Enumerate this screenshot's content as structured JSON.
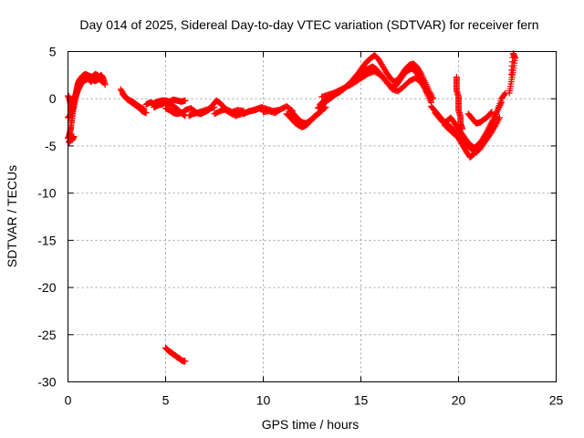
{
  "chart_data": {
    "type": "scatter",
    "title": "Day 014 of 2025, Sidereal Day-to-day VTEC variation (SDTVAR) for receiver fern",
    "xlabel": "GPS time / hours",
    "ylabel": "SDTVAR / TECUs",
    "xlim": [
      0,
      25
    ],
    "ylim": [
      -30,
      5
    ],
    "xticks": [
      0,
      5,
      10,
      15,
      20,
      25
    ],
    "yticks": [
      5,
      0,
      -5,
      -10,
      -15,
      -20,
      -25,
      -30
    ],
    "grid": true,
    "marker": "plus",
    "series": [
      {
        "name": "SDTVAR",
        "color": "#ff0000",
        "segments": [
          {
            "x": [
              0.0,
              0.05,
              0.1,
              0.15,
              0.2,
              0.25,
              0.3,
              0.35,
              0.4,
              0.45,
              0.5,
              0.55,
              0.6,
              0.7,
              0.8,
              0.9,
              1.0,
              1.1,
              1.2,
              1.3,
              1.4,
              1.5,
              1.6,
              1.7,
              1.8,
              1.9
            ],
            "y": [
              -4.2,
              -4.0,
              -3.6,
              -3.0,
              -2.2,
              -1.4,
              -0.6,
              0.0,
              0.5,
              1.0,
              1.5,
              1.8,
              2.0,
              2.3,
              2.5,
              2.6,
              2.5,
              2.4,
              2.3,
              2.4,
              2.6,
              2.5,
              2.3,
              2.5,
              2.2,
              1.5
            ]
          },
          {
            "x": [
              0.0,
              0.1,
              0.2,
              0.3,
              0.4,
              0.5,
              0.6,
              0.7,
              0.8,
              0.9,
              1.0,
              1.2,
              1.4,
              1.6,
              1.8
            ],
            "y": [
              -2.0,
              -1.8,
              -1.2,
              -0.4,
              0.3,
              0.9,
              1.3,
              1.7,
              1.9,
              2.0,
              2.1,
              2.0,
              1.9,
              2.1,
              1.7
            ]
          },
          {
            "x": [
              0.0,
              0.05,
              0.1,
              0.15,
              0.2,
              0.3,
              0.4,
              0.5,
              0.6,
              0.7,
              0.8,
              0.9,
              1.0,
              1.1,
              1.2
            ],
            "y": [
              0.3,
              0.2,
              -0.2,
              -0.8,
              -1.4,
              -0.8,
              0.2,
              0.9,
              1.4,
              1.8,
              2.1,
              2.3,
              2.2,
              2.0,
              1.8
            ]
          },
          {
            "x": [
              0.05,
              0.1,
              0.15,
              0.2,
              0.25,
              0.3
            ],
            "y": [
              -4.6,
              -4.5,
              -4.3,
              -4.4,
              -4.2,
              -4.0
            ]
          },
          {
            "x": [
              2.7,
              2.9,
              3.1,
              3.3,
              3.5,
              3.7,
              3.9
            ],
            "y": [
              1.0,
              0.3,
              -0.1,
              -0.3,
              -0.6,
              -0.9,
              -1.1
            ]
          },
          {
            "x": [
              2.8,
              3.0,
              3.2,
              3.4,
              3.6,
              3.8,
              4.0
            ],
            "y": [
              0.5,
              0.0,
              -0.3,
              -0.6,
              -0.9,
              -1.3,
              -1.5
            ]
          },
          {
            "x": [
              4.0,
              4.2,
              4.4,
              4.6,
              4.8,
              5.0,
              5.2,
              5.4,
              5.6,
              5.8,
              6.0
            ],
            "y": [
              -0.6,
              -0.4,
              -0.5,
              -0.3,
              -0.2,
              -0.2,
              -0.3,
              -0.1,
              -0.2,
              -0.3,
              -0.2
            ]
          },
          {
            "x": [
              4.4,
              4.6,
              4.8,
              5.0,
              5.2,
              5.4,
              5.6,
              5.8,
              6.0
            ],
            "y": [
              -0.9,
              -0.7,
              -0.6,
              -0.4,
              -0.5,
              -0.8,
              -1.1,
              -1.5,
              -1.8
            ]
          },
          {
            "x": [
              5.0,
              5.2,
              5.4,
              5.6,
              5.8,
              6.0
            ],
            "y": [
              -1.0,
              -1.2,
              -1.5,
              -1.6,
              -1.5,
              -1.3
            ]
          },
          {
            "x": [
              6.0,
              6.3,
              6.6,
              6.9,
              7.2,
              7.5
            ],
            "y": [
              -1.2,
              -1.0,
              -1.5,
              -1.3,
              -1.1,
              -0.9
            ]
          },
          {
            "x": [
              6.2,
              6.4,
              6.6,
              6.8,
              7.0,
              7.2,
              7.4,
              7.6,
              7.8,
              8.0
            ],
            "y": [
              -1.8,
              -1.6,
              -1.5,
              -1.6,
              -1.4,
              -1.2,
              -0.7,
              -0.2,
              -0.5,
              -0.9
            ]
          },
          {
            "x": [
              7.5,
              7.8,
              8.1,
              8.4,
              8.7,
              9.0
            ],
            "y": [
              -1.6,
              -1.3,
              -1.1,
              -1.4,
              -1.2,
              -1.3
            ]
          },
          {
            "x": [
              8.0,
              8.3,
              8.6,
              8.9,
              9.2,
              9.5,
              9.8,
              10.0
            ],
            "y": [
              -1.1,
              -1.5,
              -1.8,
              -1.6,
              -1.4,
              -1.2,
              -1.0,
              -1.2
            ]
          },
          {
            "x": [
              9.0,
              9.3,
              9.6,
              9.9,
              10.2,
              10.5,
              10.8
            ],
            "y": [
              -1.6,
              -1.3,
              -1.2,
              -0.9,
              -1.1,
              -1.3,
              -1.2
            ]
          },
          {
            "x": [
              10.0,
              10.3,
              10.6,
              10.9,
              11.2,
              11.5
            ],
            "y": [
              -1.4,
              -1.3,
              -1.5,
              -1.1,
              -0.8,
              -1.3
            ]
          },
          {
            "x": [
              11.2,
              11.4,
              11.6,
              11.8,
              12.0,
              12.2,
              12.4,
              12.6,
              12.8,
              13.0
            ],
            "y": [
              -1.6,
              -2.0,
              -2.5,
              -2.8,
              -3.0,
              -2.8,
              -2.4,
              -1.9,
              -1.6,
              -1.3
            ]
          },
          {
            "x": [
              11.4,
              11.6,
              11.8,
              12.0,
              12.2,
              12.4,
              12.6,
              12.8,
              13.0,
              13.2
            ],
            "y": [
              -1.3,
              -1.7,
              -2.2,
              -2.5,
              -2.6,
              -2.3,
              -2.0,
              -1.6,
              -1.2,
              -0.9
            ]
          },
          {
            "x": [
              12.8,
              13.0,
              13.2,
              13.4,
              13.6,
              13.8,
              14.0,
              14.2,
              14.4,
              14.6,
              14.8,
              15.0,
              15.2,
              15.4,
              15.6,
              15.8,
              16.0,
              16.2,
              16.4,
              16.6,
              16.8,
              17.0,
              17.2,
              17.4,
              17.6,
              17.8,
              18.0,
              18.2,
              18.4,
              18.6
            ],
            "y": [
              -1.0,
              -0.7,
              -0.3,
              0.0,
              0.3,
              0.6,
              0.9,
              1.2,
              1.5,
              1.8,
              2.2,
              2.6,
              3.0,
              3.2,
              3.4,
              3.1,
              2.6,
              2.1,
              1.6,
              1.2,
              1.4,
              2.0,
              2.6,
              3.0,
              3.2,
              2.9,
              2.3,
              1.4,
              0.5,
              -0.4
            ]
          },
          {
            "x": [
              12.9,
              13.1,
              13.3,
              13.5,
              13.7,
              13.9,
              14.1,
              14.3,
              14.5,
              14.7,
              14.9,
              15.1,
              15.3,
              15.5,
              15.7,
              15.9,
              16.1,
              16.3,
              16.5,
              16.7,
              16.9,
              17.1,
              17.3,
              17.5,
              17.7,
              17.9,
              18.1,
              18.3,
              18.5,
              18.7
            ],
            "y": [
              -0.6,
              -0.3,
              0.0,
              0.3,
              0.5,
              0.7,
              1.0,
              1.4,
              1.8,
              2.3,
              2.8,
              3.4,
              3.9,
              4.3,
              4.6,
              4.2,
              3.5,
              2.8,
              2.2,
              1.8,
              2.0,
              2.6,
              3.2,
              3.6,
              3.7,
              3.3,
              2.6,
              1.7,
              0.8,
              0.0
            ]
          },
          {
            "x": [
              13.0,
              13.3,
              13.6,
              13.9,
              14.2,
              14.5,
              14.8,
              15.1,
              15.4,
              15.7,
              16.0,
              16.3,
              16.6,
              16.9,
              17.2,
              17.5,
              17.8,
              18.1,
              18.4
            ],
            "y": [
              0.2,
              0.4,
              0.6,
              0.9,
              1.2,
              1.5,
              1.9,
              2.3,
              2.7,
              2.9,
              2.5,
              1.8,
              1.0,
              0.8,
              1.3,
              1.9,
              2.2,
              1.7,
              0.6
            ]
          },
          {
            "x": [
              18.6,
              18.8,
              19.0,
              19.2,
              19.4,
              19.6,
              19.8,
              20.0,
              20.2,
              20.4,
              20.6,
              20.8,
              21.0,
              21.2,
              21.4,
              21.6,
              21.8,
              22.0,
              22.2,
              22.4
            ],
            "y": [
              -0.8,
              -1.3,
              -1.8,
              -2.3,
              -2.7,
              -3.0,
              -3.5,
              -4.2,
              -4.9,
              -5.6,
              -6.2,
              -5.8,
              -5.2,
              -4.6,
              -3.9,
              -3.2,
              -2.3,
              -1.2,
              0.0,
              0.6
            ]
          },
          {
            "x": [
              18.8,
              19.0,
              19.2,
              19.4,
              19.6,
              19.8,
              20.0,
              20.2,
              20.4,
              20.6,
              20.8,
              21.0,
              21.2,
              21.4,
              21.6,
              21.8,
              22.0,
              22.2
            ],
            "y": [
              -1.5,
              -2.0,
              -2.5,
              -2.4,
              -2.0,
              -2.6,
              -3.2,
              -3.8,
              -4.4,
              -4.9,
              -5.2,
              -4.9,
              -4.4,
              -3.7,
              -2.9,
              -2.1,
              -1.2,
              -0.4
            ]
          },
          {
            "x": [
              19.3,
              19.5,
              19.7,
              19.9,
              20.1,
              20.3,
              20.5,
              20.7,
              20.9,
              21.1,
              21.3,
              21.5,
              21.7,
              21.9,
              22.1
            ],
            "y": [
              -2.8,
              -3.2,
              -3.6,
              -3.9,
              -4.3,
              -4.7,
              -5.0,
              -5.4,
              -5.7,
              -5.3,
              -4.7,
              -4.1,
              -3.5,
              -2.8,
              -2.0
            ]
          },
          {
            "x": [
              19.9,
              19.9,
              19.9,
              20.0,
              20.0,
              20.0,
              20.1,
              20.1,
              20.2
            ],
            "y": [
              2.3,
              1.6,
              0.9,
              0.2,
              -0.5,
              -1.2,
              -1.9,
              -2.6,
              -3.2
            ]
          },
          {
            "x": [
              20.5,
              20.7,
              20.9,
              21.1,
              21.3,
              21.5,
              21.7
            ],
            "y": [
              -1.6,
              -2.1,
              -2.6,
              -2.5,
              -2.2,
              -1.9,
              -1.4
            ]
          },
          {
            "x": [
              22.6,
              22.7,
              22.8,
              22.9,
              22.8,
              22.7
            ],
            "y": [
              0.6,
              1.8,
              3.0,
              4.3,
              4.8,
              2.6
            ]
          },
          {
            "x": [
              5.0,
              5.1,
              5.2,
              5.3,
              5.4,
              5.5,
              5.6,
              5.7,
              5.8,
              5.9,
              6.0
            ],
            "y": [
              -26.4,
              -26.6,
              -26.8,
              -26.9,
              -27.1,
              -27.2,
              -27.4,
              -27.5,
              -27.7,
              -27.8,
              -27.8
            ]
          }
        ]
      }
    ]
  }
}
